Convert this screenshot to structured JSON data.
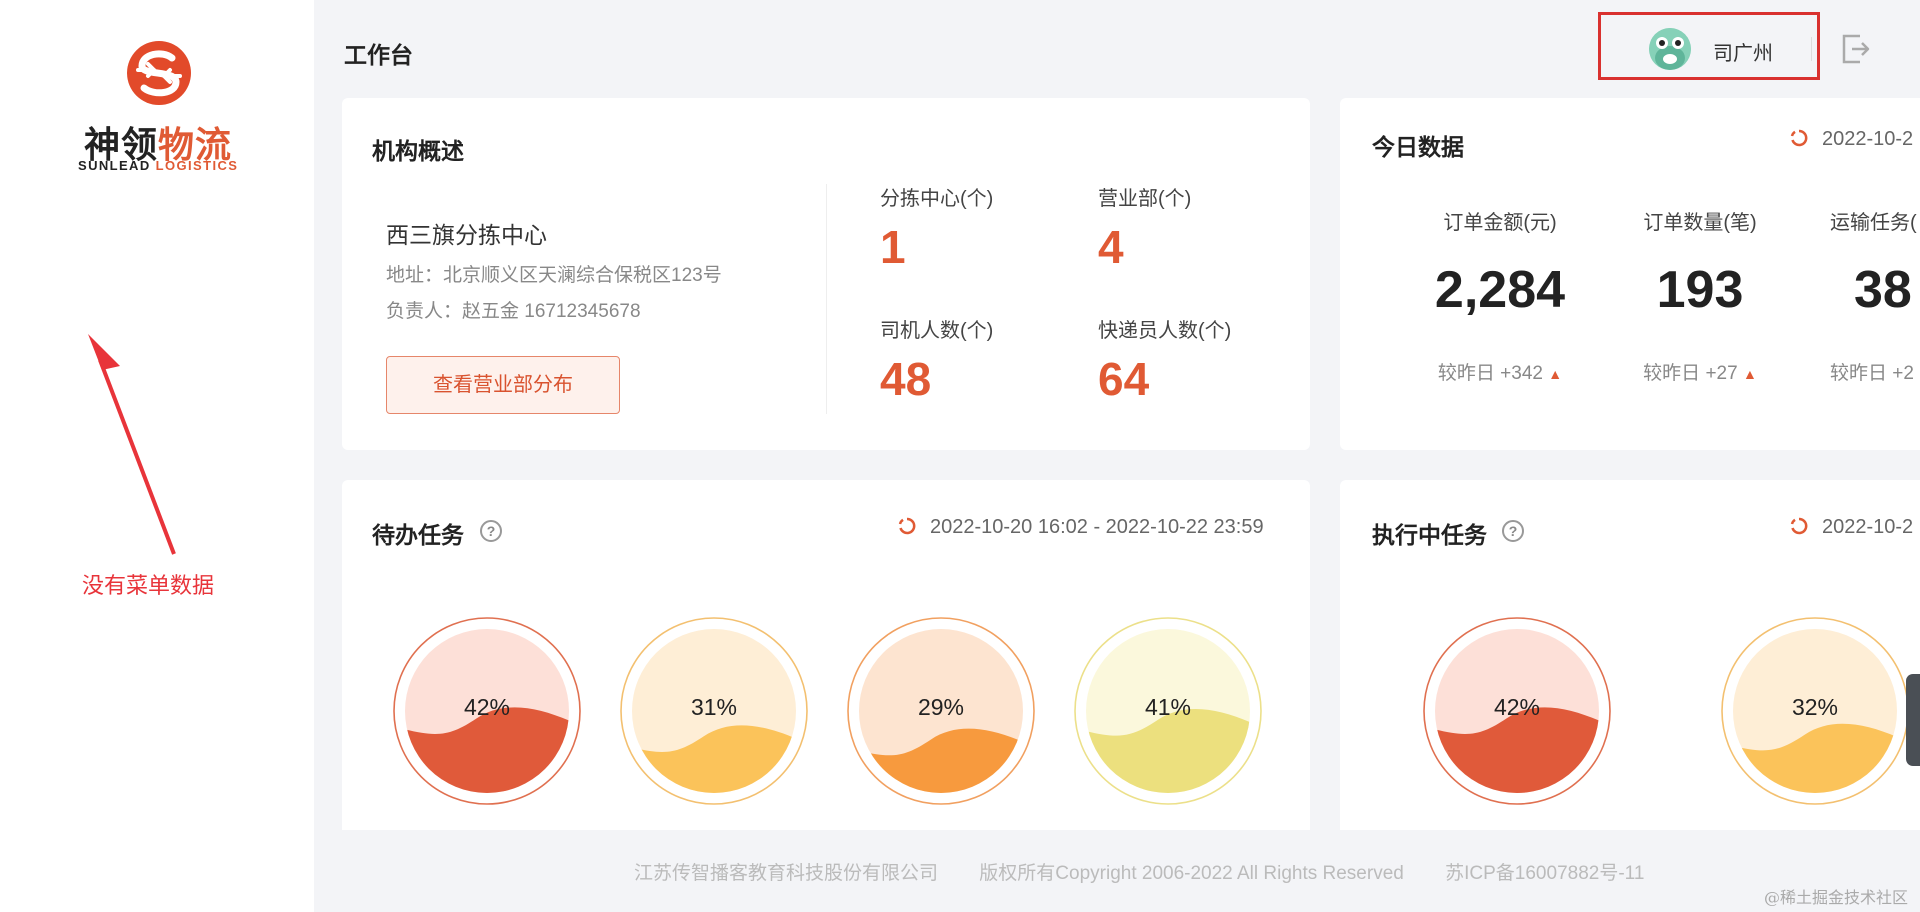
{
  "brand": {
    "name_cn_part1": "神领",
    "name_cn_part2": "物流",
    "name_en_part1": "SUNLEAD",
    "name_en_part2": "LOGISTICS"
  },
  "annotation": {
    "text": "没有菜单数据"
  },
  "header": {
    "title": "工作台",
    "user_name": "司广州"
  },
  "org": {
    "title": "机构概述",
    "name": "西三旗分拣中心",
    "address": "地址：北京顺义区天澜综合保税区123号",
    "manager": "负责人：赵五金 16712345678",
    "button_label": "查看营业部分布",
    "stats": [
      {
        "label": "分拣中心(个)",
        "value": "1"
      },
      {
        "label": "营业部(个)",
        "value": "4"
      },
      {
        "label": "司机人数(个)",
        "value": "48"
      },
      {
        "label": "快递员人数(个)",
        "value": "64"
      }
    ]
  },
  "today": {
    "title": "今日数据",
    "date": "2022-10-2",
    "metrics": [
      {
        "label": "订单金额(元)",
        "value": "2,284",
        "compare": "较昨日 +342"
      },
      {
        "label": "订单数量(笔)",
        "value": "193",
        "compare": "较昨日 +27"
      },
      {
        "label": "运输任务(",
        "value": "38",
        "compare": "较昨日 +2"
      }
    ]
  },
  "todo": {
    "title": "待办任务",
    "date_range": "2022-10-20 16:02 - 2022-10-22 23:59",
    "gauges": [
      {
        "percent": "42%",
        "value": 0.42,
        "fill": "#e05a3a",
        "bg": "#fde0d8",
        "border": "#e07050"
      },
      {
        "percent": "31%",
        "value": 0.31,
        "fill": "#fbc35a",
        "bg": "#feeed6",
        "border": "#f3c070"
      },
      {
        "percent": "29%",
        "value": 0.29,
        "fill": "#f79a3e",
        "bg": "#fde4d0",
        "border": "#f1a060"
      },
      {
        "percent": "41%",
        "value": 0.41,
        "fill": "#ece07e",
        "bg": "#fbf8dc",
        "border": "#ece08a"
      }
    ]
  },
  "executing": {
    "title": "执行中任务",
    "date": "2022-10-2",
    "gauges": [
      {
        "percent": "42%",
        "value": 0.42,
        "fill": "#e05a3a",
        "bg": "#fde0d8",
        "border": "#e07050"
      },
      {
        "percent": "32%",
        "value": 0.32,
        "fill": "#fbc35a",
        "bg": "#feeed6",
        "border": "#f3c070"
      }
    ]
  },
  "footer": {
    "company": "江苏传智播客教育科技股份有限公司",
    "copyright": "版权所有Copyright 2006-2022 All Rights Reserved",
    "icp": "苏ICP备16007882号-11"
  },
  "watermark": "@稀土掘金技术社区",
  "icons": [
    "logo-mark-icon",
    "arrow-annotation-icon",
    "avatar-icon",
    "logout-icon",
    "help-icon",
    "refresh-ring-icon",
    "arrow-up-icon"
  ]
}
